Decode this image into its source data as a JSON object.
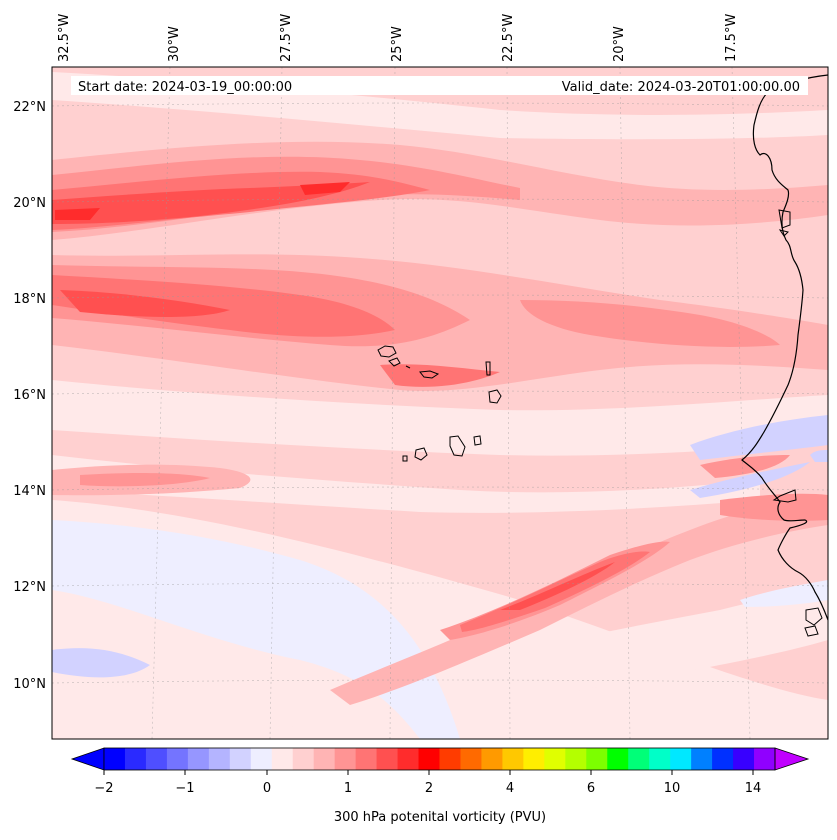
{
  "map": {
    "start_label": "Start date: 2024-03-19_00:00:00",
    "valid_label": "Valid_date: 2024-03-20T01:00:00.00",
    "lon_labels": [
      "32.5°W",
      "30°W",
      "27.5°W",
      "25°W",
      "22.5°W",
      "20°W",
      "17.5°W"
    ],
    "lat_labels": [
      "22°N",
      "20°N",
      "18°N",
      "16°N",
      "14°N",
      "12°N",
      "10°N"
    ],
    "colorbar_label": "300 hPa potenital vorticity (PVU)",
    "colorbar_ticks": [
      "−2",
      "−1",
      "0",
      "1",
      "2",
      "4",
      "6",
      "10",
      "14"
    ],
    "colorbar_colors": [
      "#0000ff",
      "#2a2aff",
      "#4f4fff",
      "#7474ff",
      "#9696ff",
      "#b4b4ff",
      "#d2d2ff",
      "#eeeeff",
      "#ffe9e9",
      "#ffd0d0",
      "#ffb4b4",
      "#ff9494",
      "#ff7474",
      "#ff5050",
      "#ff2c2c",
      "#ff0000",
      "#ff3c00",
      "#ff6a00",
      "#ff9a00",
      "#ffc800",
      "#ffee00",
      "#e0ff00",
      "#b4ff00",
      "#7cff00",
      "#00ff00",
      "#00ff78",
      "#00ffc8",
      "#00e8ff",
      "#0080ff",
      "#0030ff",
      "#3800ff",
      "#9000ff"
    ],
    "colorbar_min_color": "#0000ff",
    "colorbar_max_color": "#c000ff",
    "colors": {
      "pv_0_5": "#ffe9e9",
      "pv_1": "#ffd0d0",
      "pv_1_3": "#ffb4b4",
      "pv_1_5": "#ff9494",
      "pv_1_7": "#ff7474",
      "pv_1_9": "#ff5050",
      "pv_2": "#ff2c2c",
      "neg_small": "#eeeeff",
      "neg_med": "#d2d2ff",
      "coast": "#000000"
    }
  }
}
